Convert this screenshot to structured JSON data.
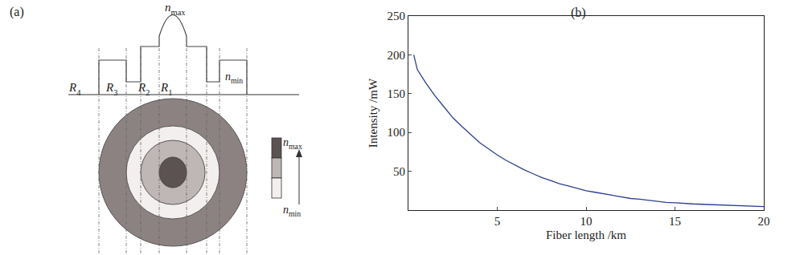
{
  "chart_data": {
    "type": "line",
    "title": "(b)",
    "x_label": "Fiber length /km",
    "y_label": "Intensity /mW",
    "x": [
      0.3,
      0.5,
      1,
      1.5,
      2,
      2.5,
      3,
      3.5,
      4,
      4.5,
      5,
      5.5,
      6,
      6.5,
      7,
      7.5,
      8,
      8.5,
      9,
      9.5,
      10,
      10.5,
      11,
      11.5,
      12,
      12.5,
      13,
      13.5,
      14,
      14.5,
      15,
      15.5,
      16,
      16.5,
      17,
      17.5,
      18,
      18.5,
      19,
      19.5,
      20
    ],
    "values": [
      200,
      181,
      163,
      147,
      133,
      119,
      108,
      97,
      87,
      79,
      71,
      64,
      58,
      52,
      47,
      42,
      38,
      34,
      31,
      28,
      25,
      23,
      21,
      19,
      17,
      15,
      14,
      12.5,
      11,
      10,
      9.5,
      8.5,
      8,
      7.5,
      7,
      6.5,
      6,
      5.5,
      5,
      5,
      4.5
    ],
    "color": "#2e3f8f",
    "xlim": [
      0,
      20
    ],
    "xticks": [
      5,
      10,
      15,
      20
    ],
    "ylim": [
      0,
      250
    ],
    "yticks": [
      50,
      100,
      150,
      200,
      250
    ],
    "grid": false
  },
  "diagram": {
    "title": "(a)",
    "peak_label": {
      "base": "n",
      "sub": "max"
    },
    "trench_label": {
      "base": "n",
      "sub": "min"
    },
    "radius_labels": [
      {
        "base": "R",
        "sub": "4"
      },
      {
        "base": "R",
        "sub": "3"
      },
      {
        "base": "R",
        "sub": "2"
      },
      {
        "base": "R",
        "sub": "1"
      }
    ],
    "scale_top": {
      "base": "n",
      "sub": "max"
    },
    "scale_bottom": {
      "base": "n",
      "sub": "min"
    }
  }
}
